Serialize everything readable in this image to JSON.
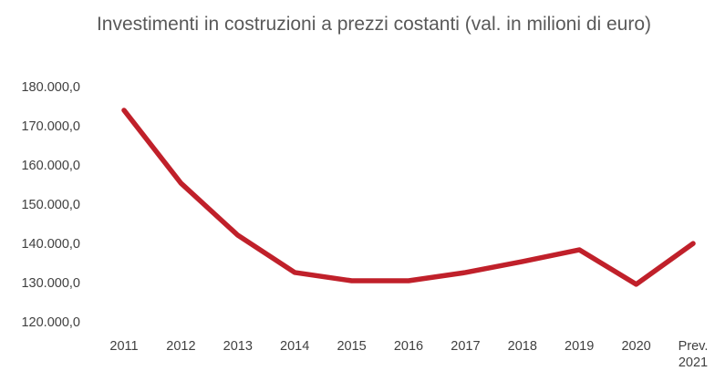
{
  "chart_data": {
    "type": "line",
    "title": "Investimenti in costruzioni a prezzi costanti (val. in milioni di euro)",
    "categories": [
      "2011",
      "2012",
      "2013",
      "2014",
      "2015",
      "2016",
      "2017",
      "2018",
      "2019",
      "2020",
      "Prev. 2021"
    ],
    "series": [
      {
        "name": "Investimenti",
        "color": "#c0202a",
        "values": [
          174200,
          155600,
          142300,
          132800,
          130700,
          130700,
          132800,
          135600,
          138600,
          129800,
          140200
        ]
      }
    ],
    "ylim": [
      120000,
      180000
    ],
    "yticks": [
      {
        "value": 120000,
        "label": "120.000,0"
      },
      {
        "value": 130000,
        "label": "130.000,0"
      },
      {
        "value": 140000,
        "label": "140.000,0"
      },
      {
        "value": 150000,
        "label": "150.000,0"
      },
      {
        "value": 160000,
        "label": "160.000,0"
      },
      {
        "value": 170000,
        "label": "170.000,0"
      },
      {
        "value": 180000,
        "label": "180.000,0"
      }
    ],
    "grid": false,
    "legend": false
  }
}
